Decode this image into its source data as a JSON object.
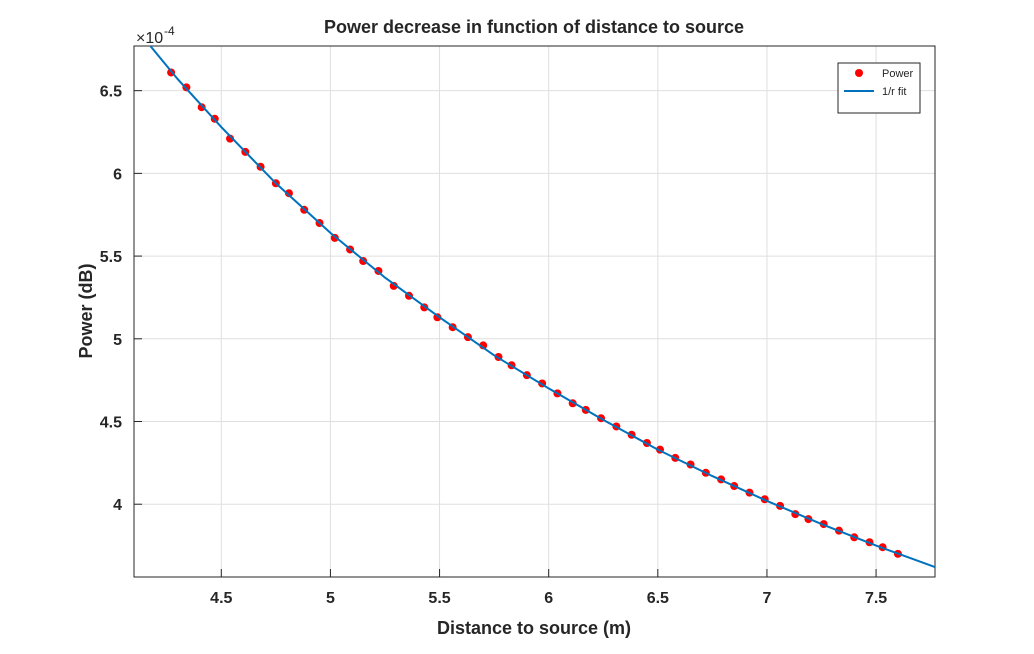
{
  "chart_data": {
    "type": "scatter",
    "title": "Power decrease in function of distance to source",
    "x_label": "Distance to source (m)",
    "y_label": "Power (dB)",
    "y_multiplier": "×10",
    "y_exponent": "-4",
    "xlim": [
      4.1,
      7.77
    ],
    "ylim": [
      3.56,
      6.77
    ],
    "xticks": [
      4.5,
      5,
      5.5,
      6,
      6.5,
      7,
      7.5
    ],
    "yticks": [
      4,
      4.5,
      5,
      5.5,
      6,
      6.5
    ],
    "grid": true,
    "legend": "upper right",
    "series": [
      {
        "name": "Power",
        "kind": "points",
        "color": "#ff0000",
        "x": [
          4.27,
          4.34,
          4.41,
          4.47,
          4.54,
          4.61,
          4.68,
          4.75,
          4.81,
          4.88,
          4.95,
          5.02,
          5.09,
          5.15,
          5.22,
          5.29,
          5.36,
          5.43,
          5.49,
          5.56,
          5.63,
          5.7,
          5.77,
          5.83,
          5.9,
          5.97,
          6.04,
          6.11,
          6.17,
          6.24,
          6.31,
          6.38,
          6.45,
          6.51,
          6.58,
          6.65,
          6.72,
          6.79,
          6.85,
          6.92,
          6.99,
          7.06,
          7.13,
          7.19,
          7.26,
          7.33,
          7.4,
          7.47,
          7.53,
          7.6
        ],
        "values": [
          6.61,
          6.52,
          6.4,
          6.33,
          6.21,
          6.13,
          6.04,
          5.94,
          5.88,
          5.78,
          5.7,
          5.61,
          5.54,
          5.47,
          5.41,
          5.32,
          5.26,
          5.19,
          5.13,
          5.07,
          5.01,
          4.96,
          4.89,
          4.84,
          4.78,
          4.73,
          4.67,
          4.61,
          4.57,
          4.52,
          4.47,
          4.42,
          4.37,
          4.33,
          4.28,
          4.24,
          4.19,
          4.15,
          4.11,
          4.07,
          4.03,
          3.99,
          3.94,
          3.91,
          3.88,
          3.84,
          3.8,
          3.77,
          3.74,
          3.7
        ]
      },
      {
        "name": "1/r fit",
        "kind": "line",
        "color": "#0072bd",
        "x": [
          4.1,
          4.3,
          4.5,
          4.75,
          5,
          5.25,
          5.5,
          5.75,
          6,
          6.25,
          6.5,
          6.75,
          7,
          7.25,
          7.5,
          7.77
        ],
        "values": [
          6.89,
          6.57,
          6.28,
          5.94,
          5.64,
          5.37,
          5.13,
          4.9,
          4.7,
          4.51,
          4.33,
          4.17,
          4.02,
          3.88,
          3.75,
          3.62
        ]
      }
    ]
  }
}
